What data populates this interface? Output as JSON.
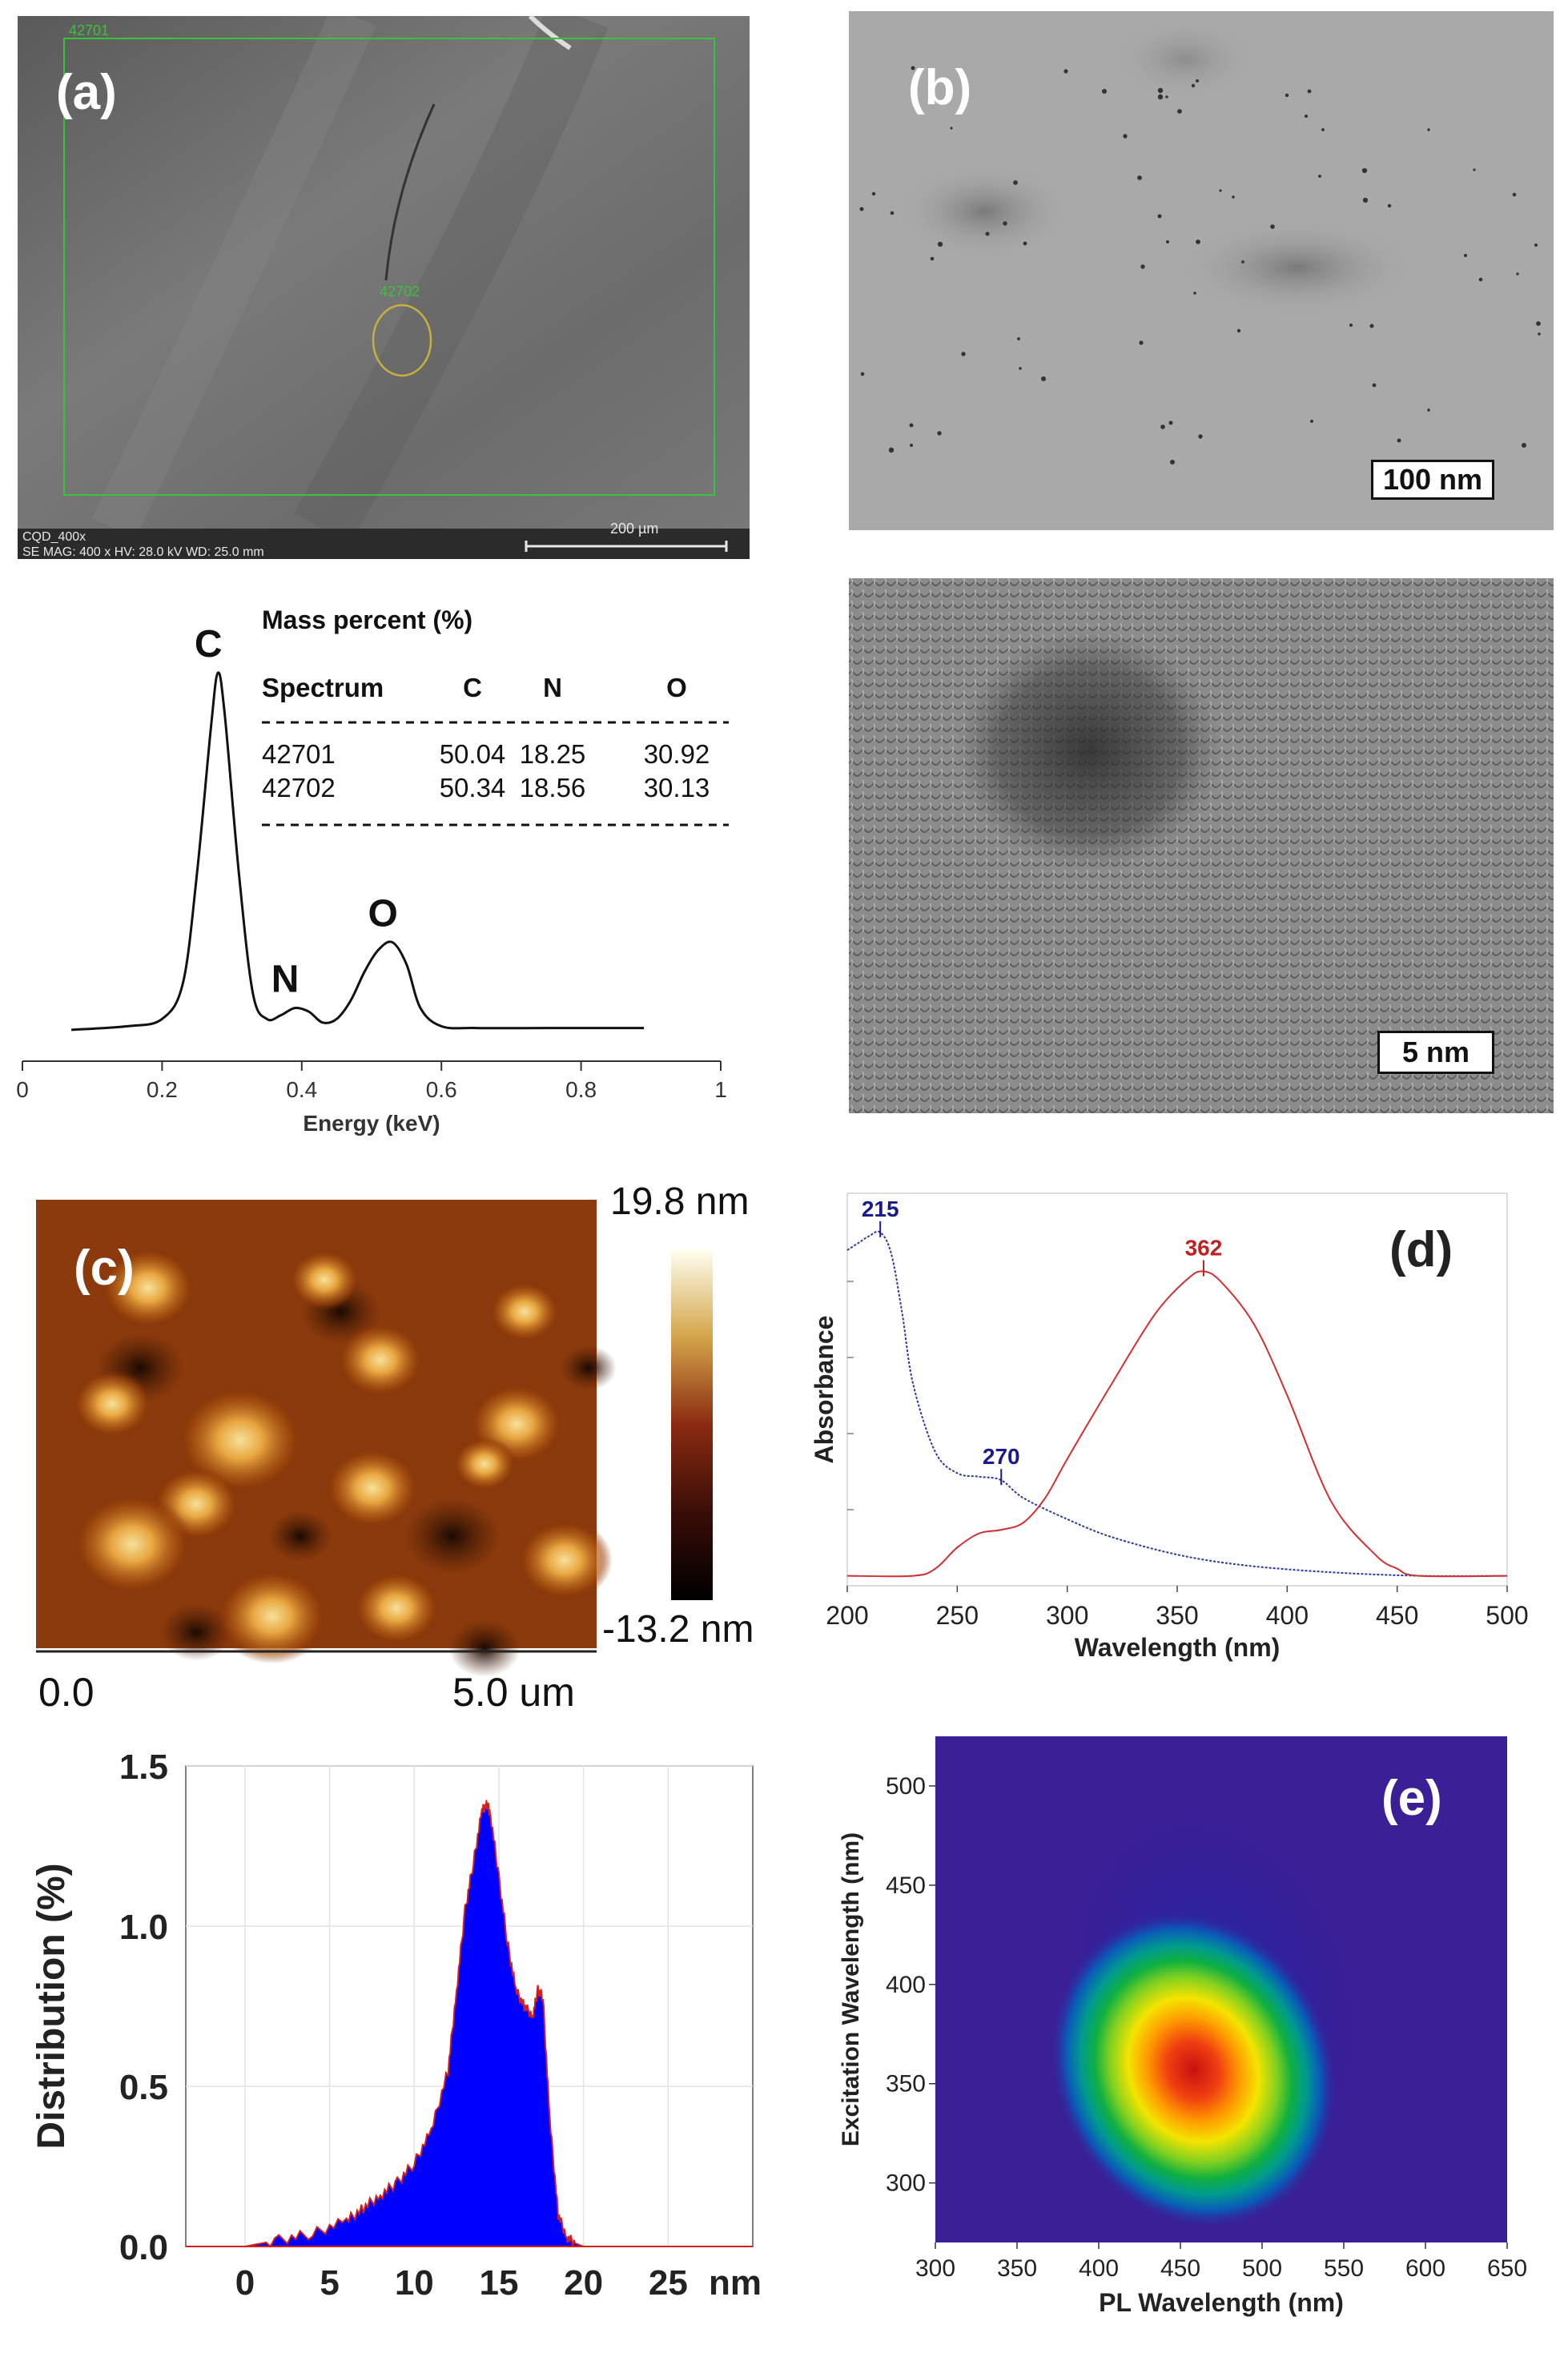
{
  "panel_a": {
    "label": "(a)",
    "region_label_1": "42701",
    "region_label_2": "42702",
    "footer_line1": "CQD_400x",
    "footer_line2": "SE  MAG: 400 x  HV: 28.0 kV  WD: 25.0 mm",
    "scale_bar": "200 µm"
  },
  "panel_b": {
    "label": "(b)",
    "scale_top": "100 nm",
    "scale_bottom": "5 nm"
  },
  "eds": {
    "table_title": "Mass percent (%)",
    "headers": [
      "Spectrum",
      "C",
      "N",
      "O"
    ],
    "rows": [
      [
        "42701",
        "50.04",
        "18.25",
        "30.92"
      ],
      [
        "42702",
        "50.34",
        "18.56",
        "30.13"
      ]
    ]
  },
  "panel_c": {
    "label": "(c)",
    "scale_max": "19.8 nm",
    "scale_min": "-13.2 nm",
    "axis_start": "0.0",
    "axis_end": "5.0 um"
  },
  "panel_d": {
    "label": "(d)"
  },
  "panel_e": {
    "label": "(e)"
  },
  "chart_data": [
    {
      "type": "line",
      "xlabel": "Energy (keV)",
      "ylabel": "",
      "xlim": [
        0,
        1
      ],
      "xticks": [
        "0",
        "0.2",
        "0.4",
        "0.6",
        "0.8",
        "1"
      ],
      "peaks": [
        {
          "label": "C",
          "x": 0.28
        },
        {
          "label": "N",
          "x": 0.39
        },
        {
          "label": "O",
          "x": 0.53
        }
      ],
      "series": [
        {
          "x": [
            0.07,
            0.15,
            0.2,
            0.23,
            0.25,
            0.27,
            0.28,
            0.29,
            0.31,
            0.33,
            0.35,
            0.37,
            0.39,
            0.41,
            0.43,
            0.45,
            0.47,
            0.49,
            0.51,
            0.53,
            0.55,
            0.57,
            0.6,
            0.65,
            0.75,
            0.89
          ],
          "y": [
            0.02,
            0.03,
            0.05,
            0.15,
            0.45,
            0.85,
            1.0,
            0.88,
            0.45,
            0.12,
            0.05,
            0.06,
            0.08,
            0.07,
            0.04,
            0.05,
            0.1,
            0.18,
            0.24,
            0.26,
            0.2,
            0.08,
            0.03,
            0.025,
            0.025,
            0.025
          ]
        }
      ]
    },
    {
      "type": "line",
      "xlabel": "Wavelength (nm)",
      "ylabel": "Absorbance",
      "xlim": [
        200,
        500
      ],
      "xticks": [
        "200",
        "250",
        "300",
        "350",
        "400",
        "450",
        "500"
      ],
      "peak_labels": [
        {
          "text": "215",
          "x": 215,
          "color": "#1a1a8c"
        },
        {
          "text": "270",
          "x": 270,
          "color": "#1a1a8c"
        },
        {
          "text": "362",
          "x": 362,
          "color": "#c02020"
        }
      ],
      "series": [
        {
          "color": "#2a3aa0",
          "x": [
            200,
            205,
            210,
            215,
            220,
            225,
            230,
            240,
            250,
            260,
            270,
            280,
            300,
            320,
            350,
            380,
            420,
            460,
            500
          ],
          "y": [
            0.93,
            0.95,
            0.97,
            0.98,
            0.92,
            0.75,
            0.55,
            0.36,
            0.3,
            0.29,
            0.28,
            0.23,
            0.17,
            0.12,
            0.07,
            0.04,
            0.02,
            0.01,
            0.01
          ]
        },
        {
          "color": "#d03030",
          "x": [
            200,
            230,
            240,
            250,
            260,
            270,
            280,
            290,
            300,
            320,
            340,
            355,
            362,
            370,
            385,
            400,
            420,
            440,
            450,
            460,
            500
          ],
          "y": [
            0.01,
            0.01,
            0.03,
            0.09,
            0.13,
            0.14,
            0.16,
            0.23,
            0.34,
            0.55,
            0.75,
            0.85,
            0.87,
            0.84,
            0.72,
            0.52,
            0.22,
            0.07,
            0.03,
            0.01,
            0.01
          ]
        }
      ]
    },
    {
      "type": "area",
      "xlabel": "",
      "ylabel": "Distribution (%)",
      "unit_label": "nm",
      "xlim": [
        -3.5,
        30
      ],
      "ylim": [
        0,
        1.5
      ],
      "xticks": [
        "0",
        "5",
        "10",
        "15",
        "20",
        "25"
      ],
      "yticks": [
        "0.0",
        "0.5",
        "1.0",
        "1.5"
      ],
      "series": [
        {
          "color": "#0000ff",
          "x": [
            -3.5,
            0,
            2,
            4,
            6,
            7,
            8,
            9,
            10,
            11,
            12,
            12.5,
            13,
            13.5,
            14,
            14.3,
            14.5,
            15,
            15.5,
            16,
            16.5,
            17,
            17.3,
            17.6,
            18,
            18.5,
            19,
            19.5,
            20,
            30
          ],
          "y": [
            0,
            0,
            0.02,
            0.04,
            0.08,
            0.12,
            0.16,
            0.2,
            0.26,
            0.36,
            0.55,
            0.8,
            1.05,
            1.2,
            1.36,
            1.38,
            1.35,
            1.15,
            0.95,
            0.8,
            0.75,
            0.72,
            0.8,
            0.78,
            0.4,
            0.1,
            0.03,
            0.01,
            0,
            0
          ]
        }
      ]
    },
    {
      "type": "heatmap",
      "xlabel": "PL Wavelength (nm)",
      "ylabel": "Excitation Wavelength (nm)",
      "xlim": [
        300,
        650
      ],
      "ylim": [
        270,
        525
      ],
      "xticks": [
        "300",
        "350",
        "400",
        "450",
        "500",
        "550",
        "600",
        "650"
      ],
      "yticks": [
        "300",
        "350",
        "400",
        "450",
        "500"
      ],
      "peak": {
        "x": 453,
        "y": 357
      }
    }
  ]
}
